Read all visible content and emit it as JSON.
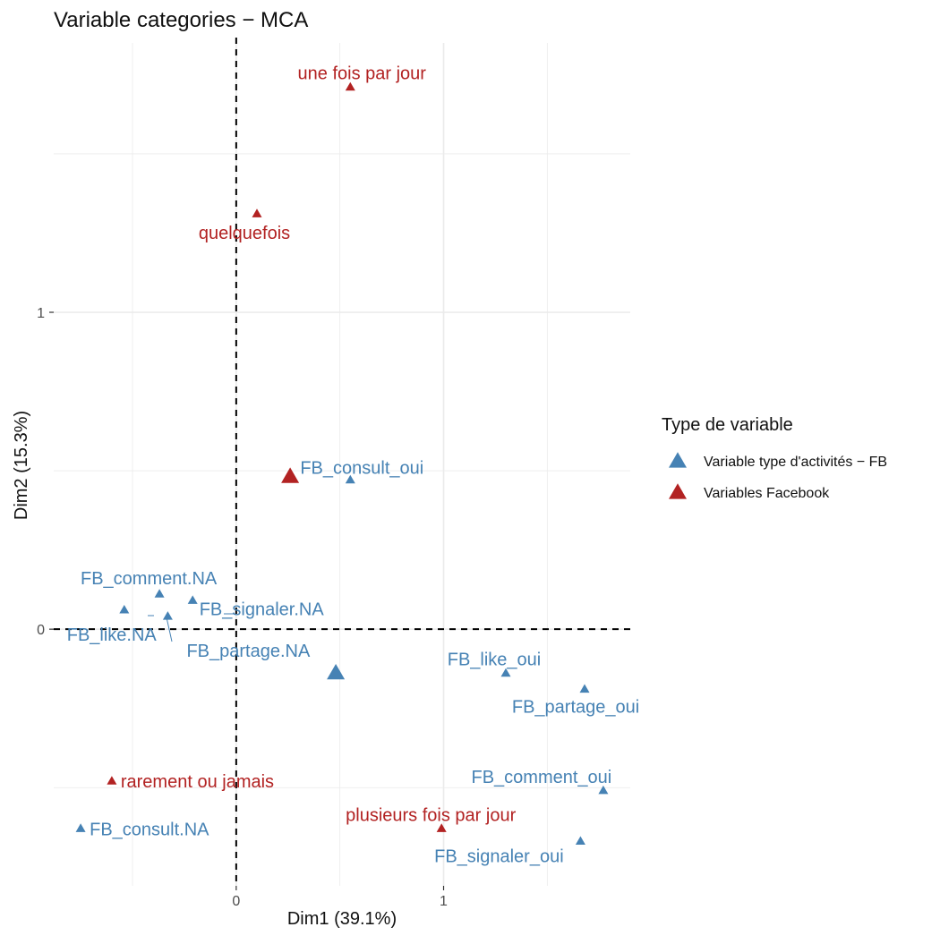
{
  "chart_data": {
    "type": "scatter",
    "title": "Variable categories − MCA",
    "xlabel": "Dim1 (39.1%)",
    "ylabel": "Dim2 (15.3%)",
    "xlim": [
      -0.88,
      1.9
    ],
    "ylim": [
      -0.81,
      1.85
    ],
    "x_ticks": [
      0,
      1
    ],
    "y_ticks": [
      0,
      1
    ],
    "grid": true,
    "reference_lines": {
      "x": 0,
      "y": 0,
      "style": "dashed"
    },
    "legend": {
      "title": "Type de variable",
      "placement": "right",
      "entries": [
        {
          "name": "Variable type d'activités − FB",
          "color": "#4682b4"
        },
        {
          "name": "Variables Facebook",
          "color": "#b22222"
        }
      ]
    },
    "series": [
      {
        "name": "Variable type d'activités − FB",
        "color": "#4682b4",
        "points": [
          {
            "label": "FB_consult_oui",
            "x": 0.55,
            "y": 0.47
          },
          {
            "label": "FB_comment.NA",
            "x": -0.37,
            "y": 0.11
          },
          {
            "label": "FB_signaler.NA",
            "x": -0.21,
            "y": 0.09
          },
          {
            "label": "FB_like.NA",
            "x": -0.54,
            "y": 0.06
          },
          {
            "label": "FB_partage.NA",
            "x": -0.33,
            "y": 0.04
          },
          {
            "label": "FB_like_oui",
            "x": 1.3,
            "y": -0.14
          },
          {
            "label": "FB_partage_oui",
            "x": 1.68,
            "y": -0.19
          },
          {
            "label": "FB_comment_oui",
            "x": 1.77,
            "y": -0.51
          },
          {
            "label": "FB_signaler_oui",
            "x": 1.66,
            "y": -0.67
          },
          {
            "label": "FB_consult.NA",
            "x": -0.75,
            "y": -0.63
          }
        ],
        "centroid": {
          "x": 0.48,
          "y": -0.14
        }
      },
      {
        "name": "Variables Facebook",
        "color": "#b22222",
        "points": [
          {
            "label": "une fois par jour",
            "x": 0.55,
            "y": 1.71
          },
          {
            "label": "quelquefois",
            "x": 0.1,
            "y": 1.31
          },
          {
            "label": "rarement ou jamais",
            "x": -0.6,
            "y": -0.48
          },
          {
            "label": "plusieurs fois par jour",
            "x": 0.99,
            "y": -0.63
          }
        ],
        "centroid": {
          "x": 0.26,
          "y": 0.48
        }
      }
    ]
  }
}
